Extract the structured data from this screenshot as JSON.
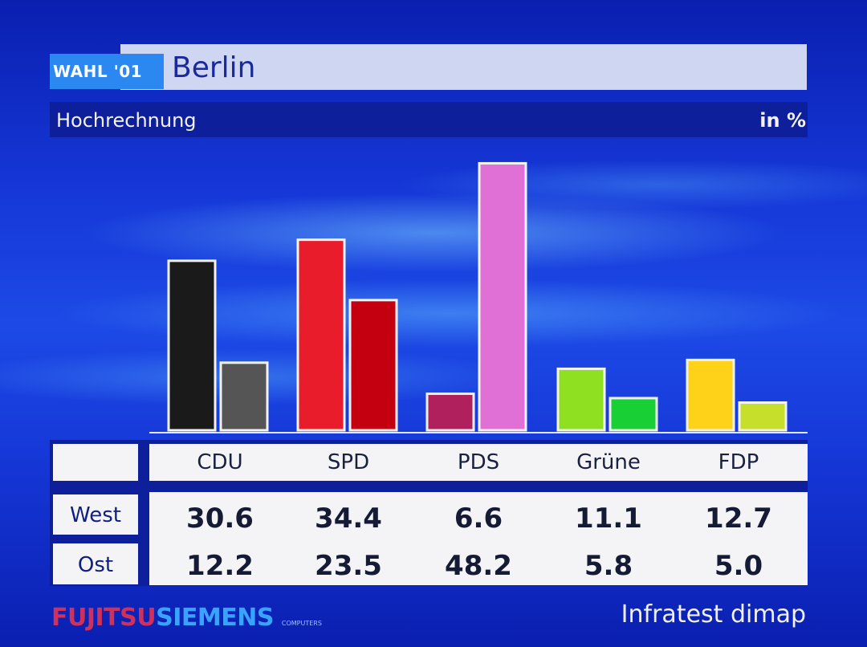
{
  "header": {
    "badge": "WAHL '01",
    "title": "Berlin",
    "subtitle": "Hochrechnung",
    "unit": "in %"
  },
  "chart_data": {
    "type": "bar",
    "categories": [
      "CDU",
      "SPD",
      "PDS",
      "Grüne",
      "FDP"
    ],
    "series": [
      {
        "name": "West",
        "values": [
          30.6,
          34.4,
          6.6,
          11.1,
          12.7
        ]
      },
      {
        "name": "Ost",
        "values": [
          12.2,
          23.5,
          48.2,
          5.8,
          5.0
        ]
      }
    ],
    "colors": {
      "West": [
        "#1a1a1a",
        "#e81c2a",
        "#b0205c",
        "#8ee020",
        "#ffd21a"
      ],
      "Ost": [
        "#555555",
        "#c40010",
        "#e070d6",
        "#18d036",
        "#c6df2a"
      ]
    },
    "ylim": [
      0,
      50
    ],
    "grid": false,
    "legend": "table-below"
  },
  "table": {
    "rows": [
      {
        "label": "West",
        "values": [
          "30.6",
          "34.4",
          "6.6",
          "11.1",
          "12.7"
        ]
      },
      {
        "label": "Ost",
        "values": [
          "12.2",
          "23.5",
          "48.2",
          "5.8",
          "5.0"
        ]
      }
    ]
  },
  "footer": {
    "logo_fujitsu": "FUJITSU",
    "logo_siemens": "SIEMENS",
    "logo_computers": "COMPUTERS",
    "source": "Infratest dimap"
  }
}
